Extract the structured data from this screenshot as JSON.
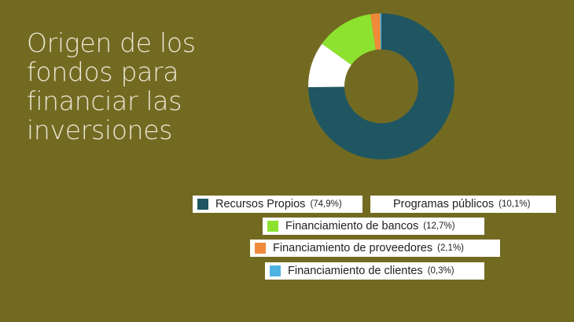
{
  "chart_data": {
    "type": "pie",
    "title": "Origen de los fondos para financiar las inversiones",
    "donut": true,
    "legend_position": "bottom-right",
    "slices": [
      {
        "label": "Recursos Propios",
        "pct_label": "(74,9%)",
        "value": 74.9,
        "color": "#1F5662"
      },
      {
        "label": "Programas públicos",
        "pct_label": "(10,1%)",
        "value": 10.1,
        "color": "#FFFFFF"
      },
      {
        "label": "Financiamiento de bancos",
        "pct_label": "(12,7%)",
        "value": 12.7,
        "color": "#8CE22E"
      },
      {
        "label": "Financiamiento de proveedores",
        "pct_label": "(2,1%)",
        "value": 2.1,
        "color": "#F08A3A"
      },
      {
        "label": "Financiamiento de clientes",
        "pct_label": "(0,3%)",
        "value": 0.3,
        "color": "#4FB3E2"
      }
    ]
  }
}
